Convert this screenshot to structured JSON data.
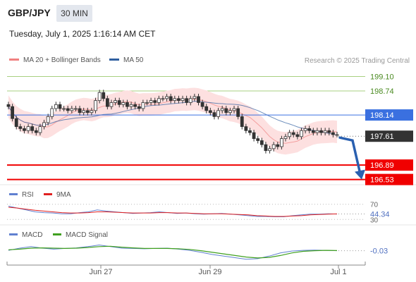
{
  "header": {
    "pair": "GBP/JPY",
    "timeframe": "30 MIN",
    "datetime": "Tuesday, July 1, 2025 1:16:14 AM CET"
  },
  "legend": {
    "bollinger": "MA 20 + Bollinger Bands",
    "ma50": "MA 50",
    "credit": "Research © 2025 Trading Central"
  },
  "colors": {
    "bollinger": "#f08080",
    "ma50": "#3060a0",
    "rsi": "#6080d0",
    "rsi_ma": "#e02020",
    "macd": "#6080d0",
    "macd_signal": "#40a020",
    "resistance": "#a8d080",
    "pivot": "#3a70e0",
    "support": "#f00000",
    "arrow": "#2a60b0"
  },
  "levels": {
    "r2": "199.10",
    "r1": "198.74",
    "pivot": "198.14",
    "last": "197.61",
    "s1": "196.89",
    "s2": "196.53"
  },
  "rsi": {
    "label": "RSI",
    "ma_label": "9MA",
    "level_70": "70",
    "value": "44.34",
    "level_30": "30"
  },
  "macd": {
    "label": "MACD",
    "signal_label": "MACD Signal",
    "value": "-0.03"
  },
  "xaxis": {
    "ticks": [
      "Jun 27",
      "Jun 29",
      "Jul 1"
    ]
  },
  "chart_data": {
    "type": "candlestick",
    "instrument": "GBP/JPY",
    "interval": "30 MIN",
    "ylim": [
      196.4,
      199.25
    ],
    "horizontal_levels": [
      199.1,
      198.74,
      198.14,
      197.61,
      196.89,
      196.53
    ],
    "forecast": {
      "from": 197.61,
      "to": 196.53
    },
    "close": [
      198.35,
      198.05,
      197.85,
      197.8,
      197.75,
      197.85,
      197.75,
      197.7,
      197.85,
      197.95,
      198.1,
      198.3,
      198.4,
      198.3,
      198.3,
      198.25,
      198.3,
      198.3,
      198.2,
      198.25,
      198.2,
      198.25,
      198.5,
      198.7,
      198.55,
      198.35,
      198.45,
      198.5,
      198.4,
      198.45,
      198.35,
      198.4,
      198.35,
      198.3,
      198.45,
      198.45,
      198.5,
      198.45,
      198.55,
      198.55,
      198.6,
      198.5,
      198.55,
      198.5,
      198.55,
      198.45,
      198.55,
      198.6,
      198.45,
      198.35,
      198.25,
      198.2,
      198.1,
      198.25,
      198.3,
      198.2,
      198.25,
      198.3,
      198.1,
      197.85,
      197.75,
      197.7,
      197.55,
      197.5,
      197.4,
      197.25,
      197.3,
      197.4,
      197.35,
      197.55,
      197.6,
      197.7,
      197.65,
      197.6,
      197.75,
      197.8,
      197.75,
      197.7,
      197.75,
      197.7,
      197.75,
      197.7,
      197.65,
      197.65
    ],
    "rsi": {
      "values": [
        65,
        60,
        55,
        50,
        48,
        47,
        45,
        45,
        48,
        50,
        55,
        52,
        50,
        48,
        46,
        47,
        48,
        50,
        48,
        46,
        47,
        45,
        44,
        45,
        46,
        44,
        42,
        40,
        38,
        38,
        37,
        37,
        40,
        42,
        44,
        44,
        45,
        44.34
      ],
      "ma": [
        62,
        60,
        57,
        54,
        52,
        50,
        48,
        47,
        47,
        48,
        50,
        50,
        49,
        48,
        47,
        47,
        47,
        48,
        48,
        47,
        47,
        46,
        45,
        45,
        45,
        44,
        43,
        42,
        40,
        39,
        38,
        38,
        39,
        40,
        42,
        43,
        44,
        44.6
      ],
      "ylim": [
        25,
        75
      ]
    },
    "macd": {
      "values": [
        -0.02,
        0.05,
        0.1,
        0.05,
        0.02,
        0.04,
        0.06,
        0.1,
        0.15,
        0.1,
        0.05,
        0.04,
        0.03,
        0.04,
        0.05,
        0.02,
        -0.02,
        -0.08,
        -0.15,
        -0.2,
        -0.25,
        -0.3,
        -0.28,
        -0.2,
        -0.1,
        -0.04,
        -0.02,
        -0.01,
        -0.02,
        -0.03
      ],
      "signal": [
        0.0,
        0.02,
        0.05,
        0.06,
        0.05,
        0.04,
        0.05,
        0.07,
        0.1,
        0.11,
        0.08,
        0.06,
        0.04,
        0.04,
        0.04,
        0.03,
        0.01,
        -0.03,
        -0.08,
        -0.13,
        -0.18,
        -0.23,
        -0.26,
        -0.24,
        -0.18,
        -0.1,
        -0.05,
        -0.03,
        -0.02,
        -0.025
      ],
      "ylim": [
        -0.35,
        0.25
      ]
    }
  }
}
